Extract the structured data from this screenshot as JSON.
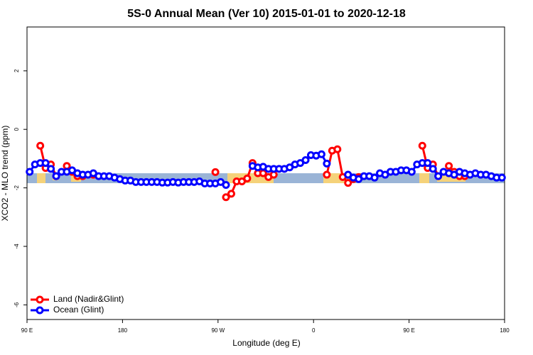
{
  "chart_data": {
    "type": "line",
    "title": "5S-0 Annual Mean (Ver 10)   2015-01-01 to 2020-12-18",
    "xlabel": "Longitude (deg E)",
    "ylabel": "XCO2 - MLO trend (ppm)",
    "legend": "bottomleft",
    "xlim": [
      90,
      540
    ],
    "ylim": [
      -6.5,
      3.5
    ],
    "xticks": [
      {
        "value": 90,
        "label": "90 E"
      },
      {
        "value": 180,
        "label": "180"
      },
      {
        "value": 270,
        "label": "90 W"
      },
      {
        "value": 360,
        "label": "0"
      },
      {
        "value": 450,
        "label": "90 E"
      },
      {
        "value": 540,
        "label": "180"
      }
    ],
    "yticks": [
      2,
      0,
      -2,
      -4,
      -6
    ],
    "x": [
      92.5,
      97.5,
      102.5,
      107.5,
      112.5,
      117.5,
      122.5,
      127.5,
      132.5,
      137.5,
      142.5,
      147.5,
      152.5,
      157.5,
      162.5,
      167.5,
      172.5,
      177.5,
      182.5,
      187.5,
      192.5,
      197.5,
      202.5,
      207.5,
      212.5,
      217.5,
      222.5,
      227.5,
      232.5,
      237.5,
      242.5,
      247.5,
      252.5,
      257.5,
      262.5,
      267.5,
      272.5,
      277.5,
      282.5,
      287.5,
      292.5,
      297.5,
      302.5,
      307.5,
      312.5,
      317.5,
      322.5,
      327.5,
      332.5,
      337.5,
      342.5,
      347.5,
      352.5,
      357.5,
      362.5,
      367.5,
      372.5,
      377.5,
      382.5,
      387.5,
      392.5,
      397.5,
      402.5,
      407.5,
      412.5,
      417.5,
      422.5,
      427.5,
      432.5,
      437.5,
      442.5,
      447.5,
      452.5,
      457.5,
      462.5,
      467.5,
      472.5,
      477.5,
      482.5,
      487.5,
      492.5,
      497.5,
      502.5,
      507.5,
      512.5,
      517.5,
      522.5,
      527.5,
      532.5,
      537.5
    ],
    "series": [
      {
        "name": "Land (Nadir&Glint)",
        "color": "#ff0000",
        "values": [
          null,
          null,
          -0.56,
          -1.32,
          -1.2,
          -1.6,
          null,
          -1.25,
          -1.45,
          -1.6,
          -1.6,
          null,
          -1.55,
          null,
          null,
          null,
          null,
          null,
          null,
          null,
          null,
          null,
          null,
          null,
          null,
          null,
          null,
          null,
          null,
          null,
          null,
          null,
          null,
          null,
          null,
          -1.46,
          null,
          -2.32,
          -2.2,
          -1.78,
          -1.78,
          -1.68,
          -1.15,
          -1.5,
          -1.5,
          -1.63,
          -1.55,
          null,
          null,
          null,
          null,
          null,
          null,
          null,
          null,
          null,
          -1.55,
          -0.73,
          -0.68,
          -1.63,
          -1.83,
          -1.7,
          -1.63,
          null,
          null,
          null,
          null,
          null,
          null,
          null,
          null,
          null,
          null,
          null,
          -0.56,
          -1.32,
          -1.2,
          -1.6,
          null,
          -1.25,
          -1.45,
          -1.6,
          -1.6,
          null,
          null,
          null,
          null,
          null,
          null,
          null
        ]
      },
      {
        "name": "Ocean (Glint)",
        "color": "#0000ff",
        "values": [
          -1.45,
          -1.2,
          -1.15,
          -1.15,
          -1.35,
          -1.6,
          -1.45,
          -1.45,
          -1.4,
          -1.5,
          -1.55,
          -1.55,
          -1.5,
          -1.6,
          -1.6,
          -1.6,
          -1.65,
          -1.7,
          -1.75,
          -1.75,
          -1.8,
          -1.8,
          -1.8,
          -1.8,
          -1.8,
          -1.82,
          -1.82,
          -1.8,
          -1.82,
          -1.8,
          -1.8,
          -1.8,
          -1.78,
          -1.85,
          -1.85,
          -1.85,
          -1.8,
          -1.9,
          null,
          null,
          null,
          null,
          -1.25,
          -1.3,
          -1.28,
          -1.35,
          -1.35,
          -1.35,
          -1.35,
          -1.3,
          -1.2,
          -1.15,
          -1.05,
          -0.88,
          -0.9,
          -0.85,
          -1.17,
          null,
          null,
          null,
          -1.55,
          -1.65,
          -1.7,
          -1.6,
          -1.6,
          -1.65,
          -1.5,
          -1.55,
          -1.45,
          -1.45,
          -1.4,
          -1.4,
          -1.45,
          -1.2,
          -1.15,
          -1.15,
          -1.35,
          -1.6,
          -1.45,
          -1.5,
          -1.55,
          -1.45,
          -1.5,
          -1.55,
          -1.5,
          -1.55,
          -1.55,
          -1.6,
          -1.65,
          -1.65
        ]
      }
    ]
  }
}
